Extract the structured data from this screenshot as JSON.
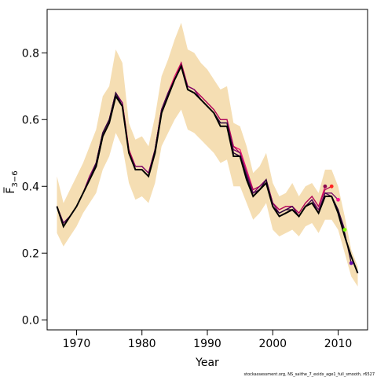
{
  "chart_data": {
    "type": "line",
    "xlabel": "Year",
    "ylabel": "F̅",
    "ylabel_subscript": "3−6",
    "xlim": [
      1965.5,
      2014.5
    ],
    "ylim": [
      -0.03,
      0.93
    ],
    "xticks": [
      1970,
      1980,
      1990,
      2000,
      2010
    ],
    "yticks": [
      0.0,
      0.2,
      0.4,
      0.6,
      0.8
    ],
    "xtick_labels": [
      "1970",
      "1980",
      "1990",
      "2000",
      "2010"
    ],
    "ytick_labels": [
      "0.0",
      "0.2",
      "0.4",
      "0.6",
      "0.8"
    ],
    "grid": false,
    "footnote": "stockassessment.org,  NS_saithe_7_exidx_age1_full_smooth, r6527",
    "colors": {
      "band": "#f5deb3",
      "final": "#000000",
      "retro": [
        "#2a0a3a",
        "#4a0a55",
        "#7a0a6a",
        "#b00a5a",
        "#e8156e",
        "#ff6f6f"
      ],
      "points": [
        "#8b0a50",
        "#ff2222",
        "#ff1493",
        "#7cfc00",
        "#6a0dad"
      ]
    },
    "series": [
      {
        "role": "confidence-band",
        "x": [
          1967,
          1968,
          1969,
          1970,
          1971,
          1972,
          1973,
          1974,
          1975,
          1976,
          1977,
          1978,
          1979,
          1980,
          1981,
          1982,
          1983,
          1984,
          1985,
          1986,
          1987,
          1988,
          1989,
          1990,
          1991,
          1992,
          1993,
          1994,
          1995,
          1996,
          1997,
          1998,
          1999,
          2000,
          2001,
          2002,
          2003,
          2004,
          2005,
          2006,
          2007,
          2008,
          2009,
          2010,
          2011,
          2012,
          2013
        ],
        "upper": [
          0.43,
          0.35,
          0.39,
          0.43,
          0.47,
          0.52,
          0.57,
          0.67,
          0.7,
          0.81,
          0.77,
          0.59,
          0.54,
          0.55,
          0.52,
          0.61,
          0.73,
          0.78,
          0.84,
          0.89,
          0.81,
          0.8,
          0.77,
          0.75,
          0.72,
          0.69,
          0.7,
          0.59,
          0.58,
          0.52,
          0.44,
          0.46,
          0.5,
          0.41,
          0.37,
          0.38,
          0.41,
          0.37,
          0.4,
          0.41,
          0.38,
          0.45,
          0.45,
          0.4,
          0.31,
          0.21,
          0.16
        ],
        "lower": [
          0.26,
          0.22,
          0.25,
          0.28,
          0.32,
          0.35,
          0.38,
          0.45,
          0.49,
          0.56,
          0.52,
          0.41,
          0.36,
          0.37,
          0.35,
          0.41,
          0.52,
          0.56,
          0.6,
          0.63,
          0.57,
          0.56,
          0.54,
          0.52,
          0.5,
          0.47,
          0.48,
          0.4,
          0.4,
          0.35,
          0.3,
          0.32,
          0.35,
          0.27,
          0.25,
          0.26,
          0.27,
          0.25,
          0.28,
          0.29,
          0.26,
          0.3,
          0.3,
          0.27,
          0.2,
          0.13,
          0.1
        ]
      },
      {
        "role": "retro-peel",
        "x": [
          1967,
          1968,
          1969,
          1970,
          1971,
          1972,
          1973,
          1974,
          1975,
          1976,
          1977,
          1978,
          1979,
          1980,
          1981,
          1982,
          1983,
          1984,
          1985,
          1986,
          1987,
          1988,
          1989,
          1990,
          1991,
          1992,
          1993,
          1994,
          1995,
          1996,
          1997,
          1998,
          1999,
          2000,
          2001,
          2002,
          2003,
          2004,
          2005,
          2006,
          2007,
          2008
        ],
        "values": [
          0.34,
          0.29,
          0.31,
          0.34,
          0.38,
          0.43,
          0.47,
          0.56,
          0.6,
          0.68,
          0.65,
          0.51,
          0.46,
          0.46,
          0.44,
          0.51,
          0.63,
          0.68,
          0.73,
          0.77,
          0.7,
          0.69,
          0.67,
          0.65,
          0.63,
          0.6,
          0.6,
          0.52,
          0.51,
          0.45,
          0.39,
          0.4,
          0.42,
          0.35,
          0.33,
          0.34,
          0.34,
          0.32,
          0.35,
          0.37,
          0.34,
          0.4
        ]
      },
      {
        "role": "retro-peel",
        "x": [
          1967,
          1968,
          1969,
          1970,
          1971,
          1972,
          1973,
          1974,
          1975,
          1976,
          1977,
          1978,
          1979,
          1980,
          1981,
          1982,
          1983,
          1984,
          1985,
          1986,
          1987,
          1988,
          1989,
          1990,
          1991,
          1992,
          1993,
          1994,
          1995,
          1996,
          1997,
          1998,
          1999,
          2000,
          2001,
          2002,
          2003,
          2004,
          2005,
          2006,
          2007,
          2008,
          2009
        ],
        "values": [
          0.34,
          0.29,
          0.31,
          0.34,
          0.38,
          0.43,
          0.47,
          0.56,
          0.6,
          0.68,
          0.65,
          0.51,
          0.46,
          0.46,
          0.44,
          0.51,
          0.63,
          0.68,
          0.72,
          0.77,
          0.7,
          0.69,
          0.67,
          0.65,
          0.63,
          0.6,
          0.6,
          0.52,
          0.5,
          0.44,
          0.39,
          0.4,
          0.42,
          0.35,
          0.33,
          0.34,
          0.34,
          0.32,
          0.35,
          0.37,
          0.34,
          0.39,
          0.4
        ]
      },
      {
        "role": "retro-peel",
        "x": [
          1967,
          1968,
          1969,
          1970,
          1971,
          1972,
          1973,
          1974,
          1975,
          1976,
          1977,
          1978,
          1979,
          1980,
          1981,
          1982,
          1983,
          1984,
          1985,
          1986,
          1987,
          1988,
          1989,
          1990,
          1991,
          1992,
          1993,
          1994,
          1995,
          1996,
          1997,
          1998,
          1999,
          2000,
          2001,
          2002,
          2003,
          2004,
          2005,
          2006,
          2007,
          2008,
          2009,
          2010
        ],
        "values": [
          0.34,
          0.29,
          0.31,
          0.34,
          0.38,
          0.43,
          0.47,
          0.56,
          0.6,
          0.68,
          0.65,
          0.5,
          0.46,
          0.46,
          0.44,
          0.51,
          0.63,
          0.68,
          0.72,
          0.76,
          0.7,
          0.69,
          0.66,
          0.64,
          0.62,
          0.59,
          0.59,
          0.51,
          0.5,
          0.44,
          0.38,
          0.4,
          0.42,
          0.35,
          0.32,
          0.33,
          0.34,
          0.31,
          0.34,
          0.36,
          0.33,
          0.38,
          0.38,
          0.36
        ]
      },
      {
        "role": "retro-peel",
        "x": [
          1967,
          1968,
          1969,
          1970,
          1971,
          1972,
          1973,
          1974,
          1975,
          1976,
          1977,
          1978,
          1979,
          1980,
          1981,
          1982,
          1983,
          1984,
          1985,
          1986,
          1987,
          1988,
          1989,
          1990,
          1991,
          1992,
          1993,
          1994,
          1995,
          1996,
          1997,
          1998,
          1999,
          2000,
          2001,
          2002,
          2003,
          2004,
          2005,
          2006,
          2007,
          2008,
          2009,
          2010,
          2011
        ],
        "values": [
          0.34,
          0.29,
          0.31,
          0.34,
          0.38,
          0.42,
          0.47,
          0.56,
          0.6,
          0.68,
          0.64,
          0.5,
          0.45,
          0.45,
          0.43,
          0.51,
          0.63,
          0.68,
          0.72,
          0.76,
          0.69,
          0.68,
          0.66,
          0.64,
          0.62,
          0.59,
          0.59,
          0.5,
          0.49,
          0.43,
          0.38,
          0.39,
          0.42,
          0.34,
          0.32,
          0.33,
          0.34,
          0.31,
          0.34,
          0.36,
          0.32,
          0.38,
          0.37,
          0.33,
          0.27
        ]
      },
      {
        "role": "retro-peel",
        "x": [
          1967,
          1968,
          1969,
          1970,
          1971,
          1972,
          1973,
          1974,
          1975,
          1976,
          1977,
          1978,
          1979,
          1980,
          1981,
          1982,
          1983,
          1984,
          1985,
          1986,
          1987,
          1988,
          1989,
          1990,
          1991,
          1992,
          1993,
          1994,
          1995,
          1996,
          1997,
          1998,
          1999,
          2000,
          2001,
          2002,
          2003,
          2004,
          2005,
          2006,
          2007,
          2008,
          2009,
          2010,
          2011,
          2012
        ],
        "values": [
          0.34,
          0.28,
          0.31,
          0.34,
          0.38,
          0.42,
          0.47,
          0.56,
          0.6,
          0.68,
          0.64,
          0.5,
          0.45,
          0.45,
          0.43,
          0.51,
          0.62,
          0.67,
          0.72,
          0.76,
          0.69,
          0.68,
          0.66,
          0.64,
          0.62,
          0.59,
          0.59,
          0.5,
          0.49,
          0.43,
          0.37,
          0.39,
          0.42,
          0.34,
          0.32,
          0.33,
          0.33,
          0.31,
          0.34,
          0.35,
          0.32,
          0.37,
          0.37,
          0.33,
          0.26,
          0.17
        ]
      },
      {
        "role": "final-estimate",
        "x": [
          1967,
          1968,
          1969,
          1970,
          1971,
          1972,
          1973,
          1974,
          1975,
          1976,
          1977,
          1978,
          1979,
          1980,
          1981,
          1982,
          1983,
          1984,
          1985,
          1986,
          1987,
          1988,
          1989,
          1990,
          1991,
          1992,
          1993,
          1994,
          1995,
          1996,
          1997,
          1998,
          1999,
          2000,
          2001,
          2002,
          2003,
          2004,
          2005,
          2006,
          2007,
          2008,
          2009,
          2010,
          2011,
          2012,
          2013
        ],
        "values": [
          0.34,
          0.28,
          0.31,
          0.34,
          0.38,
          0.42,
          0.46,
          0.55,
          0.59,
          0.67,
          0.64,
          0.5,
          0.45,
          0.45,
          0.43,
          0.5,
          0.62,
          0.67,
          0.72,
          0.76,
          0.69,
          0.68,
          0.66,
          0.64,
          0.62,
          0.58,
          0.58,
          0.49,
          0.49,
          0.42,
          0.37,
          0.39,
          0.41,
          0.34,
          0.31,
          0.32,
          0.33,
          0.31,
          0.34,
          0.35,
          0.32,
          0.37,
          0.37,
          0.32,
          0.25,
          0.19,
          0.14
        ]
      }
    ],
    "retro_end_points": [
      {
        "x": 2008,
        "y": 0.4
      },
      {
        "x": 2009,
        "y": 0.4
      },
      {
        "x": 2010,
        "y": 0.36
      },
      {
        "x": 2011,
        "y": 0.27
      },
      {
        "x": 2012,
        "y": 0.17
      }
    ]
  }
}
